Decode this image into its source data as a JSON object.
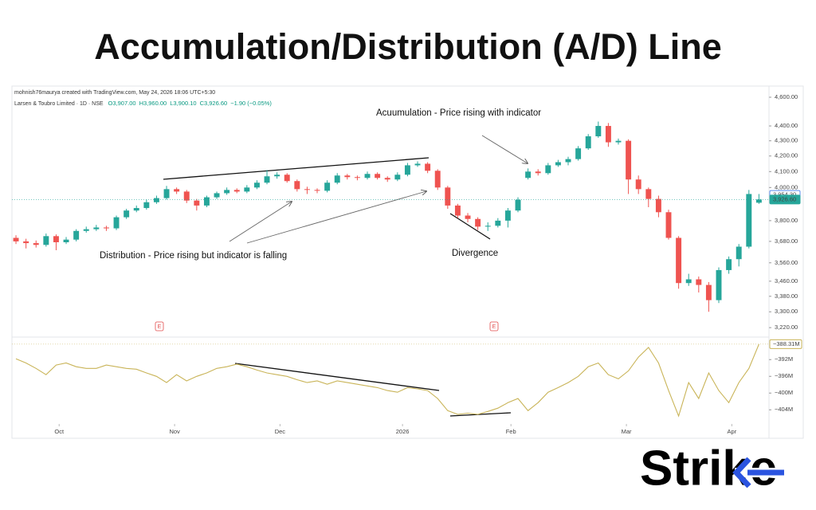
{
  "brand": "Strike",
  "chart_data": {
    "type": "candlestick",
    "title": "Accumulation/Distribution (A/D) Line",
    "attribution": "mohnish76maurya created with TradingView.com, May 24, 2026 18:06 UTC+5:30",
    "symbol": "Larsen & Toubro Limited · 1D · NSE",
    "legend_values": [
      "O3,907.00",
      "H3,960.00",
      "L3,900.10",
      "C3,926.60",
      "−1.90 (−0.05%)"
    ],
    "annotations": [
      "Acuumulation - Price rising with indicator",
      "Distribution - Price rising but indicator is falling",
      "Divergence"
    ],
    "event_labels": [
      "E",
      "E"
    ],
    "log_scale": true,
    "grid": false,
    "xlim": [
      -0.4,
      75
    ],
    "xticks": [
      {
        "value": 4.3,
        "label": "Oct"
      },
      {
        "value": 15.8,
        "label": "Nov"
      },
      {
        "value": 26.3,
        "label": "Dec"
      },
      {
        "value": 38.5,
        "label": "2026"
      },
      {
        "value": 49.3,
        "label": "Feb"
      },
      {
        "value": 60.8,
        "label": "Mar"
      },
      {
        "value": 71.3,
        "label": "Apr"
      }
    ],
    "ylim": [
      3185,
      4640
    ],
    "yticks": [
      {
        "value": 4600,
        "label": "4,600.00"
      },
      {
        "value": 4400,
        "label": "4,400.00"
      },
      {
        "value": 4300,
        "label": "4,300.00"
      },
      {
        "value": 4200,
        "label": "4,200.00"
      },
      {
        "value": 4100,
        "label": "4,100.00"
      },
      {
        "value": 4000,
        "label": "4,000.00"
      },
      {
        "value": 3800,
        "label": "3,800.00"
      },
      {
        "value": 3680,
        "label": "3,680.00"
      },
      {
        "value": 3560,
        "label": "3,560.00"
      },
      {
        "value": 3460,
        "label": "3,460.00"
      },
      {
        "value": 3380,
        "label": "3,380.00"
      },
      {
        "value": 3300,
        "label": "3,300.00"
      },
      {
        "value": 3220,
        "label": "3,220.00"
      }
    ],
    "price_labels": [
      {
        "value": 3954.3,
        "label": "3,954.30"
      },
      {
        "value": 3926.6,
        "label": "3,926.60"
      }
    ],
    "y2lim": [
      -407,
      -387
    ],
    "y2ticks": [
      {
        "value": -392,
        "label": "−392M"
      },
      {
        "value": -396,
        "label": "−396M"
      },
      {
        "value": -400,
        "label": "−400M"
      },
      {
        "value": -404,
        "label": "−404M"
      }
    ],
    "series": [
      {
        "type": "candlestick",
        "up_color": "#26a69a",
        "down_color": "#ef5350",
        "open": [
          3700,
          3680,
          3670,
          3660,
          3710,
          3675,
          3690,
          3740,
          3750,
          3760,
          3755,
          3820,
          3860,
          3875,
          3910,
          3935,
          3990,
          3975,
          3920,
          3890,
          3940,
          3965,
          3985,
          3975,
          4000,
          4030,
          4070,
          4080,
          4040,
          3990,
          3985,
          3980,
          4030,
          4075,
          4065,
          4060,
          4085,
          4060,
          4050,
          4080,
          4140,
          4150,
          4105,
          4000,
          3890,
          3830,
          3810,
          3765,
          3770,
          3800,
          3860,
          4060,
          4100,
          4090,
          4140,
          4160,
          4180,
          4250,
          4330,
          4400,
          4290,
          4300,
          4050,
          3990,
          3930,
          3850,
          3700,
          3450,
          3470,
          3440,
          3360,
          3520,
          3580,
          3650,
          3907
        ],
        "high": [
          3715,
          3695,
          3685,
          3725,
          3720,
          3705,
          3750,
          3765,
          3775,
          3770,
          3830,
          3870,
          3890,
          3925,
          3950,
          4010,
          4000,
          3985,
          3930,
          3950,
          3975,
          4000,
          3995,
          4015,
          4045,
          4110,
          4095,
          4090,
          4050,
          4005,
          3995,
          4045,
          4090,
          4085,
          4075,
          4100,
          4095,
          4070,
          4095,
          4155,
          4165,
          4160,
          4115,
          4010,
          3900,
          3845,
          3820,
          3790,
          3815,
          3875,
          3940,
          4120,
          4115,
          4155,
          4175,
          4195,
          4265,
          4345,
          4430,
          4420,
          4315,
          4310,
          4075,
          4000,
          3950,
          3865,
          3710,
          3500,
          3485,
          3455,
          3535,
          3595,
          3665,
          3985,
          3960
        ],
        "low": [
          3665,
          3640,
          3645,
          3650,
          3630,
          3665,
          3680,
          3730,
          3740,
          3740,
          3745,
          3810,
          3850,
          3865,
          3900,
          3925,
          3960,
          3905,
          3860,
          3880,
          3930,
          3955,
          3965,
          3965,
          3990,
          4020,
          4055,
          4030,
          3975,
          3960,
          3965,
          3970,
          4020,
          4050,
          4045,
          4050,
          4050,
          4035,
          4040,
          4070,
          4130,
          4090,
          3985,
          3870,
          3815,
          3790,
          3745,
          3740,
          3760,
          3760,
          3850,
          4050,
          4075,
          4080,
          4130,
          4140,
          4170,
          4240,
          4320,
          4260,
          4275,
          3960,
          3960,
          3880,
          3820,
          3690,
          3420,
          3435,
          3400,
          3300,
          3345,
          3500,
          3540,
          3640,
          3900.1
        ],
        "close": [
          3680,
          3670,
          3660,
          3710,
          3675,
          3690,
          3740,
          3750,
          3760,
          3755,
          3820,
          3860,
          3875,
          3910,
          3935,
          3990,
          3975,
          3920,
          3890,
          3940,
          3965,
          3985,
          3975,
          4000,
          4030,
          4070,
          4080,
          4040,
          3990,
          3985,
          3980,
          4030,
          4075,
          4065,
          4060,
          4085,
          4060,
          4050,
          4080,
          4140,
          4150,
          4105,
          4000,
          3890,
          3830,
          3810,
          3765,
          3770,
          3800,
          3860,
          3925,
          4100,
          4090,
          4140,
          4160,
          4180,
          4250,
          4330,
          4400,
          4290,
          4300,
          4050,
          3990,
          3930,
          3850,
          3700,
          3450,
          3470,
          3440,
          3360,
          3520,
          3580,
          3650,
          3960,
          3926.6
        ]
      },
      {
        "type": "line",
        "axis": "y2",
        "color": "#c9b458",
        "values": [
          -391.8,
          -392.8,
          -394.1,
          -395.6,
          -393.3,
          -392.8,
          -393.7,
          -394.1,
          -394.1,
          -393.3,
          -393.7,
          -394.1,
          -394.3,
          -395.2,
          -396.0,
          -397.5,
          -395.6,
          -397.1,
          -396.0,
          -395.2,
          -394.1,
          -393.7,
          -393.1,
          -393.7,
          -394.5,
          -395.2,
          -395.6,
          -396.0,
          -396.8,
          -397.5,
          -397.1,
          -397.9,
          -397.1,
          -397.5,
          -397.9,
          -398.3,
          -398.7,
          -399.4,
          -399.8,
          -398.7,
          -399.0,
          -399.4,
          -401.3,
          -404.2,
          -405.1,
          -404.8,
          -405.1,
          -404.4,
          -403.6,
          -402.3,
          -401.3,
          -404.2,
          -402.3,
          -399.8,
          -398.7,
          -397.5,
          -396.0,
          -393.7,
          -392.8,
          -395.6,
          -396.6,
          -394.7,
          -391.4,
          -389.1,
          -392.8,
          -399.4,
          -405.5,
          -397.5,
          -401.3,
          -395.2,
          -399.4,
          -402.3,
          -397.5,
          -394.1,
          -388.31
        ],
        "last_value_label": "−388.31M"
      }
    ]
  }
}
